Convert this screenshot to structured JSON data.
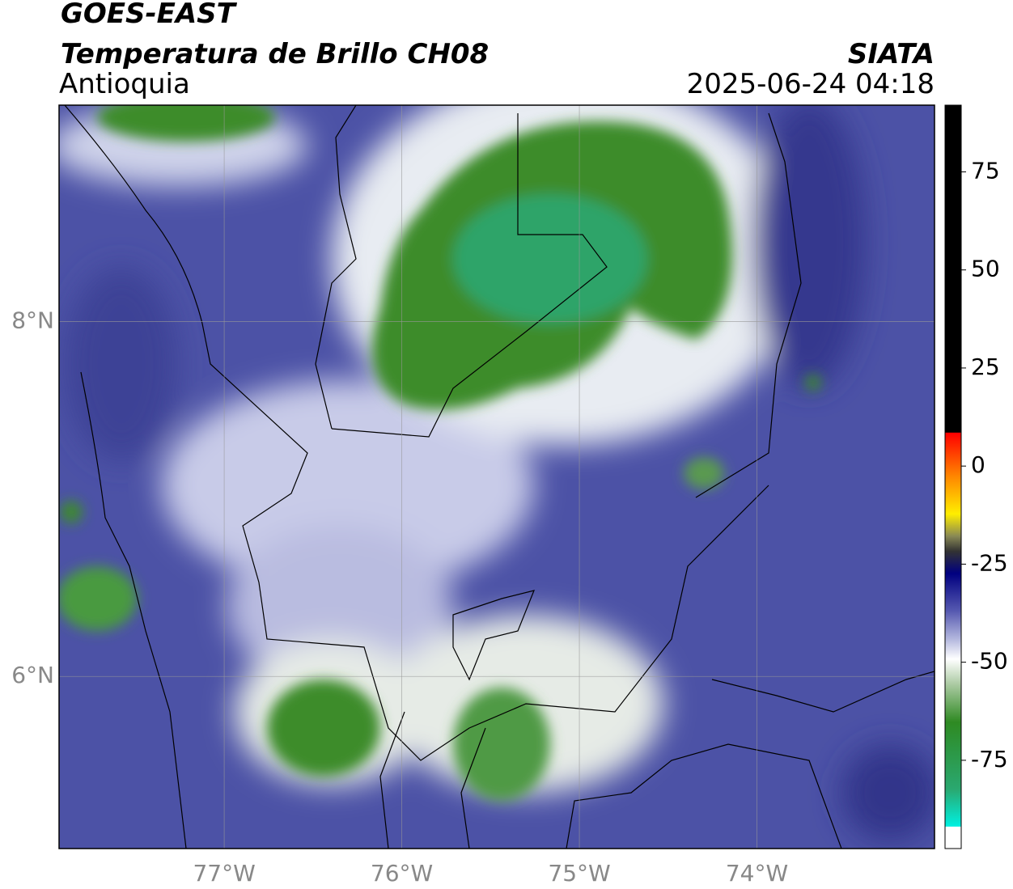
{
  "header": {
    "satellite": "GOES-EAST",
    "product": "Temperatura de Brillo CH08",
    "region": "Antioquia",
    "source": "SIATA",
    "datetime": "2025-06-24 04:18"
  },
  "chart_data": {
    "type": "map",
    "xlim": [
      -77.93,
      -73.0
    ],
    "ylim": [
      5.03,
      9.22
    ],
    "xticks": [
      {
        "value": -77,
        "label": "77°W"
      },
      {
        "value": -76,
        "label": "76°W"
      },
      {
        "value": -75,
        "label": "75°W"
      },
      {
        "value": -74,
        "label": "74°W"
      }
    ],
    "yticks": [
      {
        "value": 6,
        "label": "6°N"
      },
      {
        "value": 8,
        "label": "8°N"
      }
    ],
    "grid": true,
    "colorbar": {
      "lim": [
        -97.5,
        92
      ],
      "ticks": [
        -75,
        -50,
        -25,
        0,
        25,
        50,
        75
      ]
    }
  }
}
